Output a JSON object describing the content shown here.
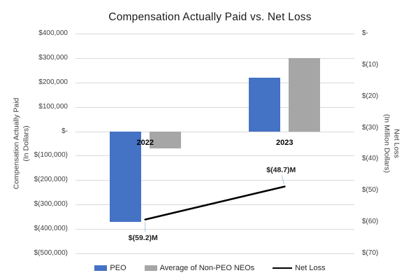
{
  "title": "Compensation Actually Paid vs. Net Loss",
  "chart_data": {
    "type": "combo-bar-line",
    "categories": [
      "2022",
      "2023"
    ],
    "series": [
      {
        "name": "PEO",
        "type": "bar",
        "axis": "left",
        "color": "#4472c4",
        "values": [
          -370000,
          220000
        ]
      },
      {
        "name": "Average of Non-PEO NEOs",
        "type": "bar",
        "axis": "left",
        "color": "#a6a6a6",
        "values": [
          -70000,
          300000
        ]
      },
      {
        "name": "Net Loss",
        "type": "line",
        "axis": "right",
        "color": "#000000",
        "values": [
          -59.2,
          -48.7
        ],
        "point_labels": [
          "$(59.2)M",
          "$(48.7)M"
        ]
      }
    ],
    "left_axis": {
      "title_line1": "Compensation Actually Paid",
      "title_line2": "(In Dollars)",
      "max": 400000,
      "min": -500000,
      "tick_step": 100000,
      "tick_labels": [
        "$400,000",
        "$300,000",
        "$200,000",
        "$100,000",
        "$-",
        "$(100,000)",
        "$(200,000)",
        "$(300,000)",
        "$(400,000)",
        "$(500,000)"
      ]
    },
    "right_axis": {
      "title_line1": "Net Loss",
      "title_line2": "(In Million Dollars)",
      "max": 0,
      "min": -70,
      "tick_step": 10,
      "tick_labels": [
        "$-",
        "$(10)",
        "$(20)",
        "$(30)",
        "$(40)",
        "$(50)",
        "$(60)",
        "$(70)"
      ]
    },
    "legend": [
      {
        "label": "PEO",
        "color": "#4472c4",
        "marker": "swatch"
      },
      {
        "label": "Average of Non-PEO NEOs",
        "color": "#a6a6a6",
        "marker": "swatch"
      },
      {
        "label": "Net Loss",
        "color": "#000000",
        "marker": "line"
      }
    ],
    "colors": {
      "gridline": "#d9d9d9",
      "leader_line": "#a9c4e4",
      "background": "#ffffff"
    },
    "grid": "horizontal-major",
    "legend_position": "bottom"
  }
}
